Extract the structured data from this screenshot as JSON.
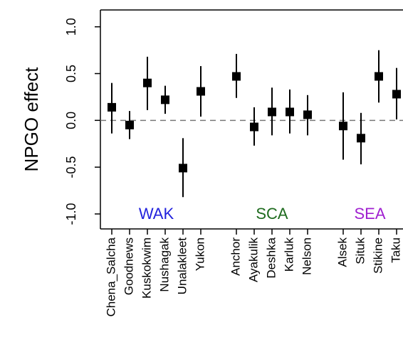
{
  "chart_data": {
    "type": "interval",
    "y_label": "NPGO effect",
    "categories": [
      "Chena_Salcha",
      "Goodnews",
      "Kuskokwim",
      "Nushagak",
      "Unalakleet",
      "Yukon",
      null,
      "Anchor",
      "Ayakulik",
      "Deshka",
      "Karluk",
      "Nelson",
      null,
      "Alsek",
      "Situk",
      "Stikine",
      "Taku"
    ],
    "values": [
      0.14,
      -0.05,
      0.4,
      0.22,
      -0.51,
      0.31,
      null,
      0.47,
      -0.07,
      0.09,
      0.09,
      0.06,
      null,
      -0.06,
      -0.19,
      0.47,
      0.28
    ],
    "lower": [
      -0.14,
      -0.2,
      0.11,
      0.07,
      -0.82,
      0.04,
      null,
      0.24,
      -0.27,
      -0.16,
      -0.14,
      -0.16,
      null,
      -0.42,
      -0.47,
      0.19,
      0.01
    ],
    "upper": [
      0.4,
      0.1,
      0.68,
      0.37,
      -0.19,
      0.58,
      null,
      0.71,
      0.14,
      0.35,
      0.33,
      0.27,
      null,
      0.3,
      0.08,
      0.75,
      0.56
    ],
    "color": "#000000",
    "groups": [
      {
        "name": "WAK",
        "color": "#2222dd"
      },
      {
        "name": "SCA",
        "color": "#1e6b1e"
      },
      {
        "name": "SEA",
        "color": "#a020d0"
      }
    ],
    "reference_line": 0,
    "ylim": [
      -1.16,
      1.18
    ],
    "yticks": [
      {
        "value": -1,
        "label": "-1.0"
      },
      {
        "value": -0.5,
        "label": "-0.5"
      },
      {
        "value": 0,
        "label": "0.0"
      },
      {
        "value": 0.5,
        "label": "0.5"
      },
      {
        "value": 1,
        "label": "1.0"
      }
    ]
  }
}
